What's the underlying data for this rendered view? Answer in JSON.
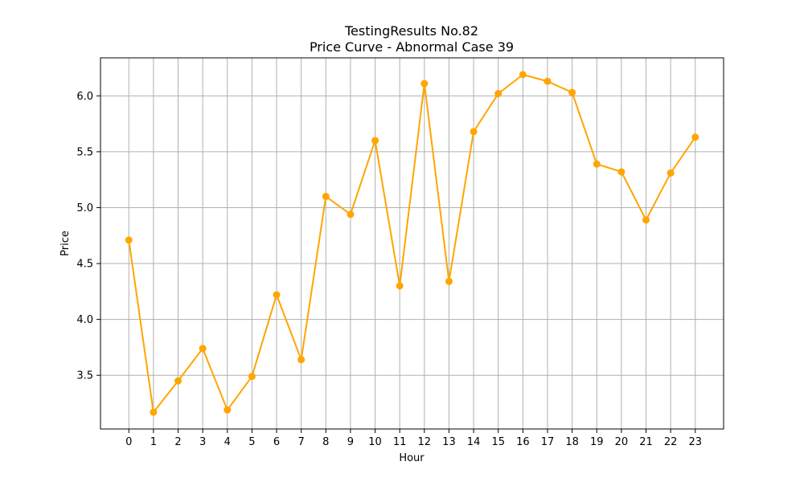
{
  "chart_data": {
    "type": "line",
    "title": "TestingResults No.82",
    "subtitle": "Price Curve - Abnormal Case 39",
    "xlabel": "Hour",
    "ylabel": "Price",
    "x": [
      0,
      1,
      2,
      3,
      4,
      5,
      6,
      7,
      8,
      9,
      10,
      11,
      12,
      13,
      14,
      15,
      16,
      17,
      18,
      19,
      20,
      21,
      22,
      23
    ],
    "series": [
      {
        "color": "#FFA500",
        "values": [
          4.71,
          3.17,
          3.45,
          3.74,
          3.19,
          3.49,
          4.22,
          3.64,
          5.1,
          4.94,
          5.6,
          4.3,
          6.11,
          4.34,
          5.68,
          6.02,
          6.19,
          6.13,
          6.03,
          5.39,
          5.32,
          4.89,
          5.31,
          5.63
        ]
      }
    ],
    "yticks": [
      3.5,
      4.0,
      4.5,
      5.0,
      5.5,
      6.0
    ],
    "ytick_labels": [
      "3.5",
      "4.0",
      "4.5",
      "5.0",
      "5.5",
      "6.0"
    ],
    "xlim": [
      -1.15,
      24.15
    ],
    "ylim": [
      3.02,
      6.34
    ],
    "grid": true,
    "marker": "circle"
  }
}
